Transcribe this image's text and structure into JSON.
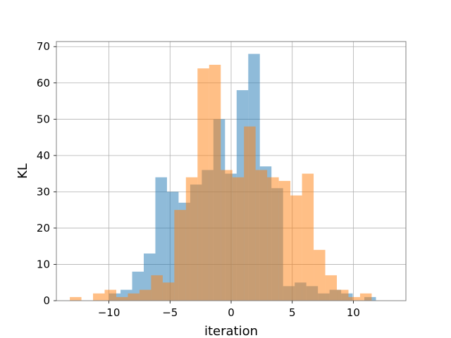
{
  "chart_data": {
    "type": "bar",
    "subtype": "overlapping-histogram",
    "xlabel": "iteration",
    "ylabel": "KL",
    "xlim": [
      -14.3,
      14.3
    ],
    "ylim": [
      0,
      71.4
    ],
    "x_ticks": [
      -10,
      -5,
      0,
      5,
      10
    ],
    "x_tick_labels": [
      "−10",
      "−5",
      "0",
      "5",
      "10"
    ],
    "y_ticks": [
      0,
      10,
      20,
      30,
      40,
      50,
      60,
      70
    ],
    "y_tick_labels": [
      "0",
      "10",
      "20",
      "30",
      "40",
      "50",
      "60",
      "70"
    ],
    "grid": true,
    "bar_opacity": 0.5,
    "series": [
      {
        "color": "#1f77b4",
        "bin_start": -10.0,
        "bin_width": 0.95,
        "values": [
          2,
          3,
          8,
          13,
          34,
          30,
          27,
          32,
          36,
          50,
          35,
          58,
          68,
          37,
          31,
          4,
          5,
          4,
          2,
          3,
          2,
          0,
          1
        ]
      },
      {
        "color": "#ff7f0e",
        "bin_start": -13.2,
        "bin_width": 0.95,
        "values": [
          1,
          0,
          2,
          3,
          1,
          2,
          3,
          7,
          5,
          25,
          34,
          64,
          65,
          36,
          34,
          48,
          36,
          34,
          33,
          29,
          35,
          14,
          7,
          3,
          1,
          2
        ]
      }
    ]
  }
}
